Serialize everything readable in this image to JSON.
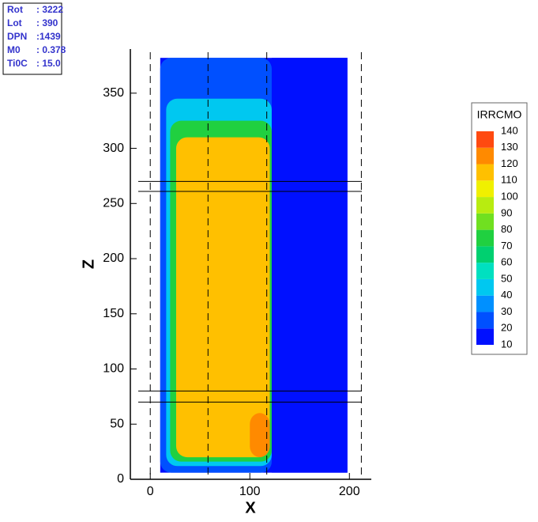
{
  "chart_data": {
    "type": "contour",
    "xlabel": "X",
    "ylabel": "Z",
    "xlim": [
      -20,
      222
    ],
    "ylim": [
      0,
      390
    ],
    "xticks": [
      0,
      100,
      200
    ],
    "yticks": [
      0,
      50,
      100,
      150,
      200,
      250,
      300,
      350
    ],
    "annotations": [
      {
        "label": "Rot",
        "value": ": 3222"
      },
      {
        "label": "Lot",
        "value": ": 390"
      },
      {
        "label": "DPN",
        "value": ":1439"
      },
      {
        "label": "M0",
        "value": ": 0.378"
      },
      {
        "label": "Ti0C",
        "value": ": 15.0"
      }
    ],
    "colorbar": {
      "title": "IRRCMO",
      "levels": [
        10,
        20,
        30,
        40,
        50,
        60,
        70,
        80,
        90,
        100,
        110,
        120,
        130,
        140
      ],
      "colors": [
        "#0010ff",
        "#0050ff",
        "#0090ff",
        "#00c8f0",
        "#00e0c0",
        "#00d070",
        "#20d040",
        "#70e020",
        "#b8ec10",
        "#f0f000",
        "#ffc000",
        "#ff8a00",
        "#ff4a10"
      ]
    },
    "field": [
      {
        "x": [
          10,
          198
        ],
        "z": [
          6,
          382
        ],
        "value": 15
      },
      {
        "x": [
          10,
          122
        ],
        "z": [
          6,
          382
        ],
        "value": 25
      },
      {
        "x": [
          16,
          122
        ],
        "z": [
          12,
          345
        ],
        "value": 45
      },
      {
        "x": [
          20,
          122
        ],
        "z": [
          16,
          325
        ],
        "value": 75
      },
      {
        "x": [
          26,
          120
        ],
        "z": [
          20,
          310
        ],
        "value": 118
      },
      {
        "x": [
          100,
          120
        ],
        "z": [
          20,
          60
        ],
        "value": 128
      },
      {
        "x": [
          122,
          198
        ],
        "z": [
          6,
          382
        ],
        "value": 12
      }
    ],
    "x_dashed_lines": [
      0,
      58,
      117,
      212
    ],
    "z_lines": [
      70,
      80,
      261,
      270
    ]
  }
}
